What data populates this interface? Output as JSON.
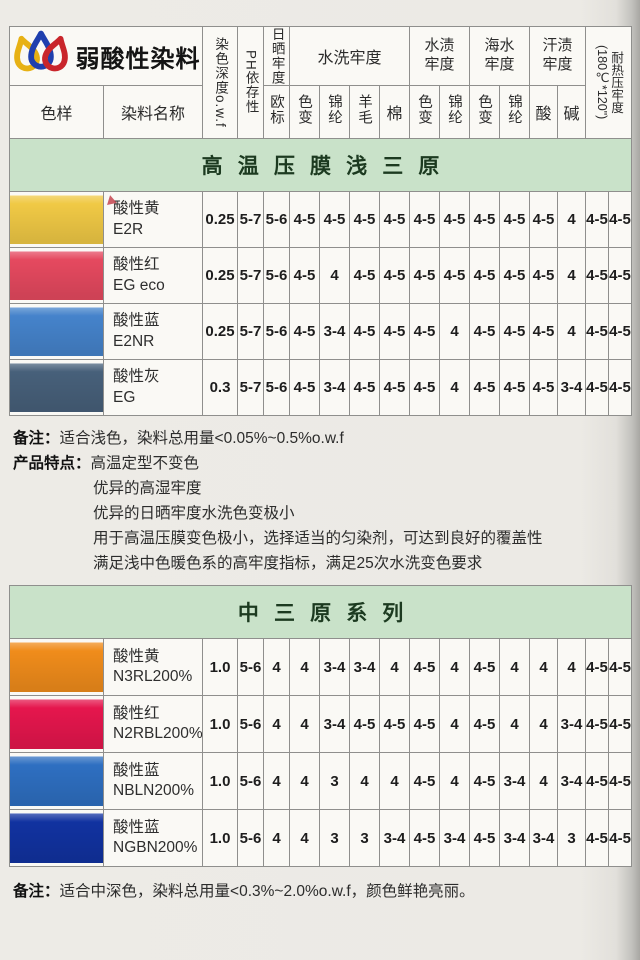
{
  "logo": {
    "title": "弱酸性染料"
  },
  "header": {
    "sample": "色样",
    "name": "染料名称",
    "depth": "染色深度o.w.f",
    "ph": "PH依存性",
    "sun": "日晒牢度",
    "sun_sub": "欧标",
    "wash": "水洗牢度",
    "wash_subs": [
      "色变",
      "锦纶",
      "羊毛",
      "棉"
    ],
    "water": "水渍牢度",
    "water_subs": [
      "色变",
      "锦纶"
    ],
    "sea": "海水牢度",
    "sea_subs": [
      "色变",
      "锦纶"
    ],
    "sweat": "汗渍牢度",
    "sweat_subs": [
      "酸",
      "碱"
    ],
    "heat": "耐热压牢度",
    "heat_cond": "(180℃*120\")"
  },
  "tables": [
    {
      "banner": "高温压膜浅三原",
      "rows": [
        {
          "swatch": "#f0c945",
          "marker": true,
          "name_cn": "酸性黄",
          "code": "E2R",
          "values": [
            "0.25",
            "5-7",
            "5-6",
            "4-5",
            "4-5",
            "4-5",
            "4-5",
            "4-5",
            "4-5",
            "4-5",
            "4-5",
            "4-5",
            "4",
            "4-5",
            "4-5"
          ]
        },
        {
          "swatch": "#e5495f",
          "marker": false,
          "name_cn": "酸性红",
          "code": "EG eco",
          "values": [
            "0.25",
            "5-7",
            "5-6",
            "4-5",
            "4",
            "4-5",
            "4-5",
            "4-5",
            "4-5",
            "4-5",
            "4-5",
            "4-5",
            "4",
            "4-5",
            "4-5"
          ]
        },
        {
          "swatch": "#4583cb",
          "marker": false,
          "name_cn": "酸性蓝",
          "code": "E2NR",
          "values": [
            "0.25",
            "5-7",
            "5-6",
            "4-5",
            "3-4",
            "4-5",
            "4-5",
            "4-5",
            "4",
            "4-5",
            "4-5",
            "4-5",
            "4",
            "4-5",
            "4-5"
          ]
        },
        {
          "swatch": "#47607a",
          "marker": false,
          "name_cn": "酸性灰",
          "code": "EG",
          "values": [
            "0.3",
            "5-7",
            "5-6",
            "4-5",
            "3-4",
            "4-5",
            "4-5",
            "4-5",
            "4",
            "4-5",
            "4-5",
            "4-5",
            "3-4",
            "4-5",
            "4-5"
          ]
        }
      ]
    },
    {
      "banner": "中三原系列",
      "rows": [
        {
          "swatch": "#f08c1b",
          "marker": false,
          "name_cn": "酸性黄",
          "code": "N3RL200%",
          "values": [
            "1.0",
            "5-6",
            "4",
            "4",
            "3-4",
            "3-4",
            "4",
            "4-5",
            "4",
            "4-5",
            "4",
            "4",
            "4",
            "4-5",
            "4-5"
          ]
        },
        {
          "swatch": "#e5164d",
          "marker": false,
          "name_cn": "酸性红",
          "code": "N2RBL200%",
          "values": [
            "1.0",
            "5-6",
            "4",
            "4",
            "3-4",
            "4-5",
            "4-5",
            "4-5",
            "4",
            "4-5",
            "4",
            "4",
            "3-4",
            "4-5",
            "4-5"
          ]
        },
        {
          "swatch": "#2e6fc1",
          "marker": false,
          "name_cn": "酸性蓝",
          "code": "NBLN200%",
          "values": [
            "1.0",
            "5-6",
            "4",
            "4",
            "3",
            "4",
            "4",
            "4-5",
            "4",
            "4-5",
            "3-4",
            "4",
            "3-4",
            "4-5",
            "4-5"
          ]
        },
        {
          "swatch": "#1132a0",
          "marker": false,
          "name_cn": "酸性蓝",
          "code": "NGBN200%",
          "values": [
            "1.0",
            "5-6",
            "4",
            "4",
            "3",
            "3",
            "3-4",
            "4-5",
            "3-4",
            "4-5",
            "3-4",
            "3-4",
            "3",
            "4-5",
            "4-5"
          ]
        }
      ]
    }
  ],
  "notes1": {
    "note_label": "备注：",
    "note_text": "适合浅色，染料总用量<0.05%~0.5%o.w.f",
    "features_label": "产品特点：",
    "features": [
      "高温定型不变色",
      "优异的高湿牢度",
      "优异的日晒牢度水洗色变极小",
      "用于高温压膜变色极小，选择适当的匀染剂，可达到良好的覆盖性",
      "满足浅中色暖色系的高牢度指标，满足25次水洗变色要求"
    ]
  },
  "notes2": {
    "note_label": "备注：",
    "note_text": "适合中深色，染料总用量<0.3%~2.0%o.w.f，颜色鲜艳亮丽。"
  }
}
